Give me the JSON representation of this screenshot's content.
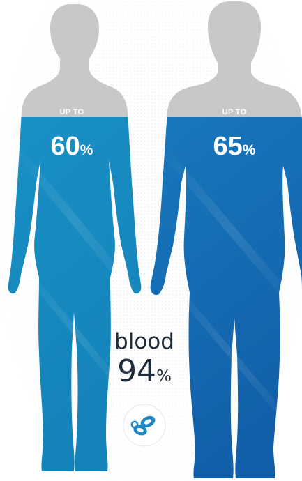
{
  "female": {
    "prefix": "UP TO",
    "value": "60",
    "unit": "%"
  },
  "male": {
    "prefix": "UP TO",
    "value": "65",
    "unit": "%"
  },
  "blood": {
    "label": "blood",
    "value": "94",
    "unit": "%"
  },
  "colors": {
    "head_gray": "#c8c8c8",
    "female_water_top": "#1b94c9",
    "female_water_bottom": "#1483b9",
    "male_water_top": "#1a7fc1",
    "male_water_bottom": "#1260a9",
    "blood_cell": "#1d88c4"
  },
  "icons": [
    "female-silhouette-icon",
    "male-silhouette-icon",
    "blood-cells-icon"
  ]
}
